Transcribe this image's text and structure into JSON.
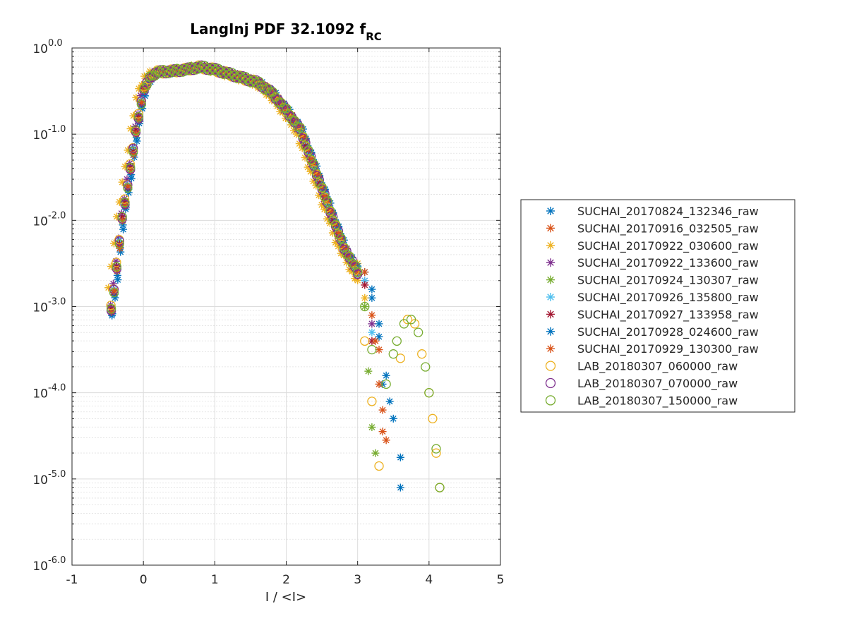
{
  "chart_data": {
    "type": "scatter",
    "title": "LangInj PDF 32.1092 f",
    "title_subscript": "RC",
    "xlabel": "I / <I>",
    "ylabel": "",
    "xlim": [
      -1,
      5
    ],
    "ylim": [
      1e-06,
      1
    ],
    "yscale": "log",
    "grid": true,
    "minor_grid": true,
    "legend_position": "right-outside",
    "x_ticks": [
      "-1",
      "0",
      "1",
      "2",
      "3",
      "4",
      "5"
    ],
    "y_ticks": [
      {
        "base": "10",
        "exp": "-6.0"
      },
      {
        "base": "10",
        "exp": "-5.0"
      },
      {
        "base": "10",
        "exp": "-4.0"
      },
      {
        "base": "10",
        "exp": "-3.0"
      },
      {
        "base": "10",
        "exp": "-2.0"
      },
      {
        "base": "10",
        "exp": "-1.0"
      },
      {
        "base": "10",
        "exp": "0.0"
      }
    ],
    "curve": {
      "x": [
        -0.5,
        -0.4,
        -0.3,
        -0.2,
        -0.1,
        0.0,
        0.1,
        0.2,
        0.4,
        0.6,
        0.8,
        1.0,
        1.2,
        1.4,
        1.6,
        1.8,
        2.0,
        2.2,
        2.4,
        2.6,
        2.8,
        3.0,
        3.1
      ],
      "log10y": [
        -3.3,
        -2.75,
        -2.0,
        -1.5,
        -0.95,
        -0.5,
        -0.33,
        -0.28,
        -0.27,
        -0.25,
        -0.22,
        -0.25,
        -0.3,
        -0.35,
        -0.4,
        -0.52,
        -0.72,
        -0.95,
        -1.4,
        -1.85,
        -2.3,
        -2.6,
        -2.75
      ]
    },
    "series": [
      {
        "name": "SUCHAI_20170824_132346_raw",
        "marker": "asterisk",
        "color": "#0072BD",
        "x_offset": 0.02,
        "tail": [
          [
            3.1,
            -2.6
          ],
          [
            3.2,
            -2.9
          ],
          [
            3.3,
            -3.35
          ],
          [
            3.4,
            -3.8
          ],
          [
            3.5,
            -4.3
          ],
          [
            3.6,
            -4.75
          ],
          [
            3.6,
            -5.1
          ]
        ]
      },
      {
        "name": "SUCHAI_20170916_032505_raw",
        "marker": "asterisk",
        "color": "#D95319",
        "x_offset": 0.0,
        "tail": [
          [
            3.1,
            -2.6
          ],
          [
            3.2,
            -3.1
          ],
          [
            3.3,
            -3.5
          ],
          [
            3.35,
            -4.2
          ],
          [
            3.4,
            -4.55
          ]
        ]
      },
      {
        "name": "SUCHAI_20170922_030600_raw",
        "marker": "asterisk",
        "color": "#EDB120",
        "x_offset": -0.08,
        "tail": [
          [
            3.0,
            -2.5
          ],
          [
            3.1,
            -2.9
          ]
        ]
      },
      {
        "name": "SUCHAI_20170922_133600_raw",
        "marker": "asterisk",
        "color": "#7E2F8E",
        "x_offset": -0.02,
        "tail": [
          [
            3.1,
            -2.7
          ],
          [
            3.2,
            -3.2
          ]
        ]
      },
      {
        "name": "SUCHAI_20170924_130307_raw",
        "marker": "asterisk",
        "color": "#77AC30",
        "x_offset": 0.0,
        "tail": [
          [
            3.0,
            -2.55
          ],
          [
            3.1,
            -3.0
          ],
          [
            3.15,
            -3.75
          ],
          [
            3.2,
            -4.4
          ],
          [
            3.25,
            -4.7
          ]
        ]
      },
      {
        "name": "SUCHAI_20170926_135800_raw",
        "marker": "asterisk",
        "color": "#4DBEEE",
        "x_offset": 0.0,
        "tail": [
          [
            3.1,
            -2.7
          ],
          [
            3.2,
            -3.3
          ]
        ]
      },
      {
        "name": "SUCHAI_20170927_133958_raw",
        "marker": "asterisk",
        "color": "#A2142F",
        "x_offset": 0.0,
        "tail": [
          [
            3.1,
            -2.75
          ],
          [
            3.2,
            -3.4
          ]
        ]
      },
      {
        "name": "SUCHAI_20170928_024600_raw",
        "marker": "asterisk",
        "color": "#0072BD",
        "x_offset": 0.03,
        "tail": [
          [
            3.2,
            -2.8
          ],
          [
            3.3,
            -3.2
          ],
          [
            3.35,
            -3.9
          ],
          [
            3.45,
            -4.1
          ]
        ]
      },
      {
        "name": "SUCHAI_20170929_130300_raw",
        "marker": "asterisk",
        "color": "#D95319",
        "x_offset": 0.01,
        "tail": [
          [
            3.25,
            -3.4
          ],
          [
            3.3,
            -3.9
          ],
          [
            3.35,
            -4.45
          ]
        ]
      },
      {
        "name": "LAB_20180307_060000_raw",
        "marker": "circle",
        "color": "#EDB120",
        "x_offset": -0.01,
        "tail": [
          [
            3.1,
            -3.4
          ],
          [
            3.2,
            -4.1
          ],
          [
            3.3,
            -4.85
          ],
          [
            3.6,
            -3.6
          ],
          [
            3.7,
            -3.15
          ],
          [
            3.8,
            -3.2
          ],
          [
            3.9,
            -3.55
          ],
          [
            4.0,
            -4.0
          ],
          [
            4.05,
            -4.3
          ],
          [
            4.1,
            -4.7
          ],
          [
            4.15,
            -5.1
          ]
        ]
      },
      {
        "name": "LAB_20180307_070000_raw",
        "marker": "circle",
        "color": "#7E2F8E",
        "x_offset": 0.0,
        "tail": []
      },
      {
        "name": "LAB_20180307_150000_raw",
        "marker": "circle",
        "color": "#77AC30",
        "x_offset": 0.0,
        "tail": [
          [
            3.1,
            -3.0
          ],
          [
            3.2,
            -3.5
          ],
          [
            3.4,
            -3.9
          ],
          [
            3.5,
            -3.55
          ],
          [
            3.55,
            -3.4
          ],
          [
            3.65,
            -3.2
          ],
          [
            3.75,
            -3.15
          ],
          [
            3.85,
            -3.3
          ],
          [
            3.95,
            -3.7
          ],
          [
            4.0,
            -4.0
          ],
          [
            4.1,
            -4.65
          ],
          [
            4.15,
            -5.1
          ]
        ]
      }
    ]
  }
}
